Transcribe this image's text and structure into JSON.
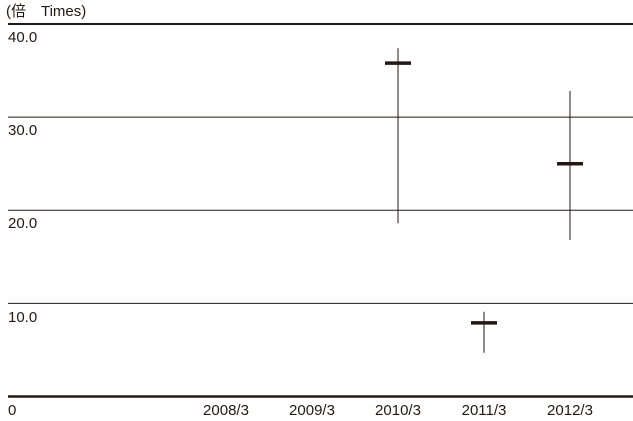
{
  "chart_data": {
    "type": "candlestick-range",
    "unit_label": "(倍　Times)",
    "zero_label": "0",
    "ylim": [
      0,
      40
    ],
    "yticks": [
      {
        "value": 40,
        "label": "40.0"
      },
      {
        "value": 30,
        "label": "30.0"
      },
      {
        "value": 20,
        "label": "20.0"
      },
      {
        "value": 10,
        "label": "10.0"
      }
    ],
    "categories": [
      "2008/3",
      "2009/3",
      "2010/3",
      "2011/3",
      "2012/3"
    ],
    "series": [
      {
        "category": "2008/3",
        "high": null,
        "low": null,
        "value": null
      },
      {
        "category": "2009/3",
        "high": null,
        "low": null,
        "value": null
      },
      {
        "category": "2010/3",
        "high": 37.4,
        "low": 18.6,
        "value": 35.8
      },
      {
        "category": "2011/3",
        "high": 9.1,
        "low": 4.7,
        "value": 7.9
      },
      {
        "category": "2012/3",
        "high": 32.8,
        "low": 16.8,
        "value": 25.0
      }
    ],
    "grid": true,
    "colors": {
      "line": "#231815",
      "background": "#ffffff"
    }
  }
}
